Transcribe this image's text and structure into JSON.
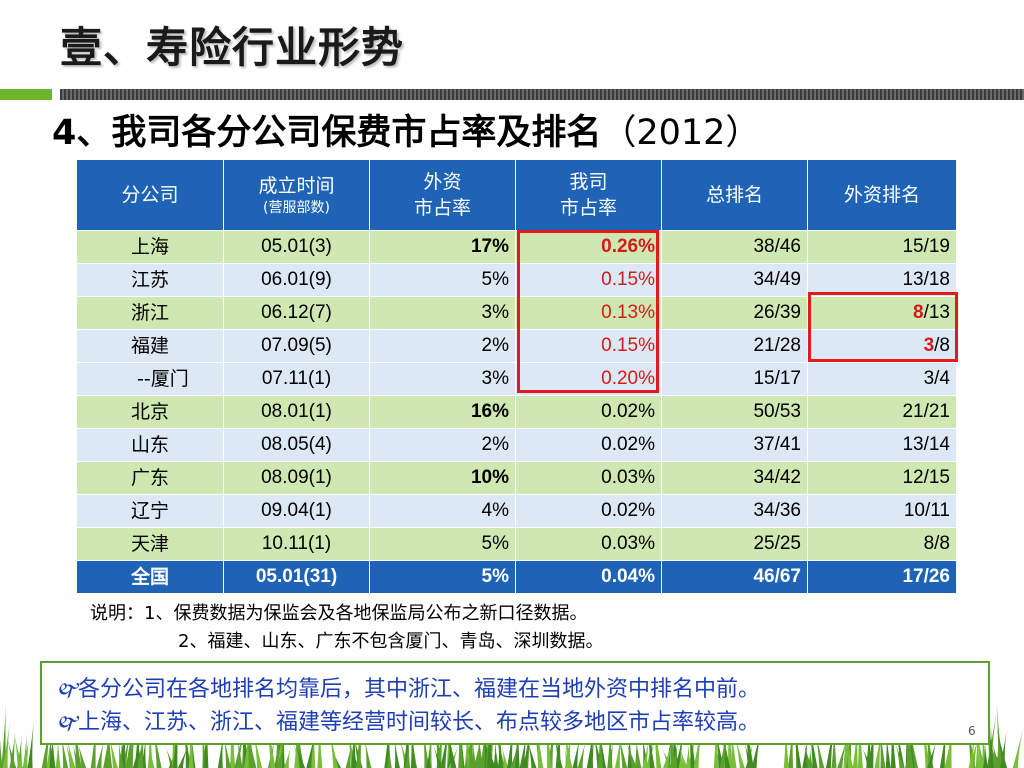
{
  "title": "壹、寿险行业形势",
  "subtitle": "4、我司各分公司保费市占率及排名",
  "subtitle_year": "（2012）",
  "table": {
    "headers": {
      "branch": "分公司",
      "established": "成立时间",
      "established_sub": "(营服部数)",
      "foreign_share_1": "外资",
      "foreign_share_2": "市占率",
      "our_share_1": "我司",
      "our_share_2": "市占率",
      "overall_rank": "总排名",
      "foreign_rank": "外资排名"
    },
    "rows": [
      {
        "branch": "上海",
        "established": "05.01(3)",
        "foreign_share": "17%",
        "our_share": "0.26%",
        "overall_rank": "38/46",
        "foreign_rank": "15/19"
      },
      {
        "branch": "江苏",
        "established": "06.01(9)",
        "foreign_share": "5%",
        "our_share": "0.15%",
        "overall_rank": "34/49",
        "foreign_rank": "13/18"
      },
      {
        "branch": "浙江",
        "established": "06.12(7)",
        "foreign_share": "3%",
        "our_share": "0.13%",
        "overall_rank": "26/39",
        "foreign_rank_a": "8",
        "foreign_rank_b": "/13"
      },
      {
        "branch": "福建",
        "established": "07.09(5)",
        "foreign_share": "2%",
        "our_share": "0.15%",
        "overall_rank": "21/28",
        "foreign_rank_a": "3",
        "foreign_rank_b": "/8"
      },
      {
        "branch": "--厦门",
        "established": "07.11(1)",
        "foreign_share": "3%",
        "our_share": "0.20%",
        "overall_rank": "15/17",
        "foreign_rank": "3/4"
      },
      {
        "branch": "北京",
        "established": "08.01(1)",
        "foreign_share": "16%",
        "our_share": "0.02%",
        "overall_rank": "50/53",
        "foreign_rank": "21/21"
      },
      {
        "branch": "山东",
        "established": "08.05(4)",
        "foreign_share": "2%",
        "our_share": "0.02%",
        "overall_rank": "37/41",
        "foreign_rank": "13/14"
      },
      {
        "branch": "广东",
        "established": "08.09(1)",
        "foreign_share": "10%",
        "our_share": "0.03%",
        "overall_rank": "34/42",
        "foreign_rank": "12/15"
      },
      {
        "branch": "辽宁",
        "established": "09.04(1)",
        "foreign_share": "4%",
        "our_share": "0.02%",
        "overall_rank": "34/36",
        "foreign_rank": "10/11"
      },
      {
        "branch": "天津",
        "established": "10.11(1)",
        "foreign_share": "5%",
        "our_share": "0.03%",
        "overall_rank": "25/25",
        "foreign_rank": "8/8"
      }
    ],
    "total": {
      "branch": "全国",
      "established": "05.01(31)",
      "foreign_share": "5%",
      "our_share": "0.04%",
      "overall_rank": "46/67",
      "foreign_rank": "17/26"
    }
  },
  "notes": {
    "line1": "说明：1、保费数据为保监会及各地保监局公布之新口径数据。",
    "line2": "2、福建、山东、广东不包含厦门、青岛、深圳数据。"
  },
  "bullets": {
    "symbol": "🙰",
    "b1": "各分公司在各地排名均靠后，其中浙江、福建在当地外资中排名中前。",
    "b2": "上海、江苏、浙江、福建等经营时间较长、布点较多地区市占率较高。"
  },
  "page_number": "6",
  "colors": {
    "header_blue": "#1f63b6",
    "row_green": "#cfe7b0",
    "row_blue": "#dce8f5",
    "highlight_red": "#e21a1a",
    "bullet_blue": "#1d3fb5"
  }
}
